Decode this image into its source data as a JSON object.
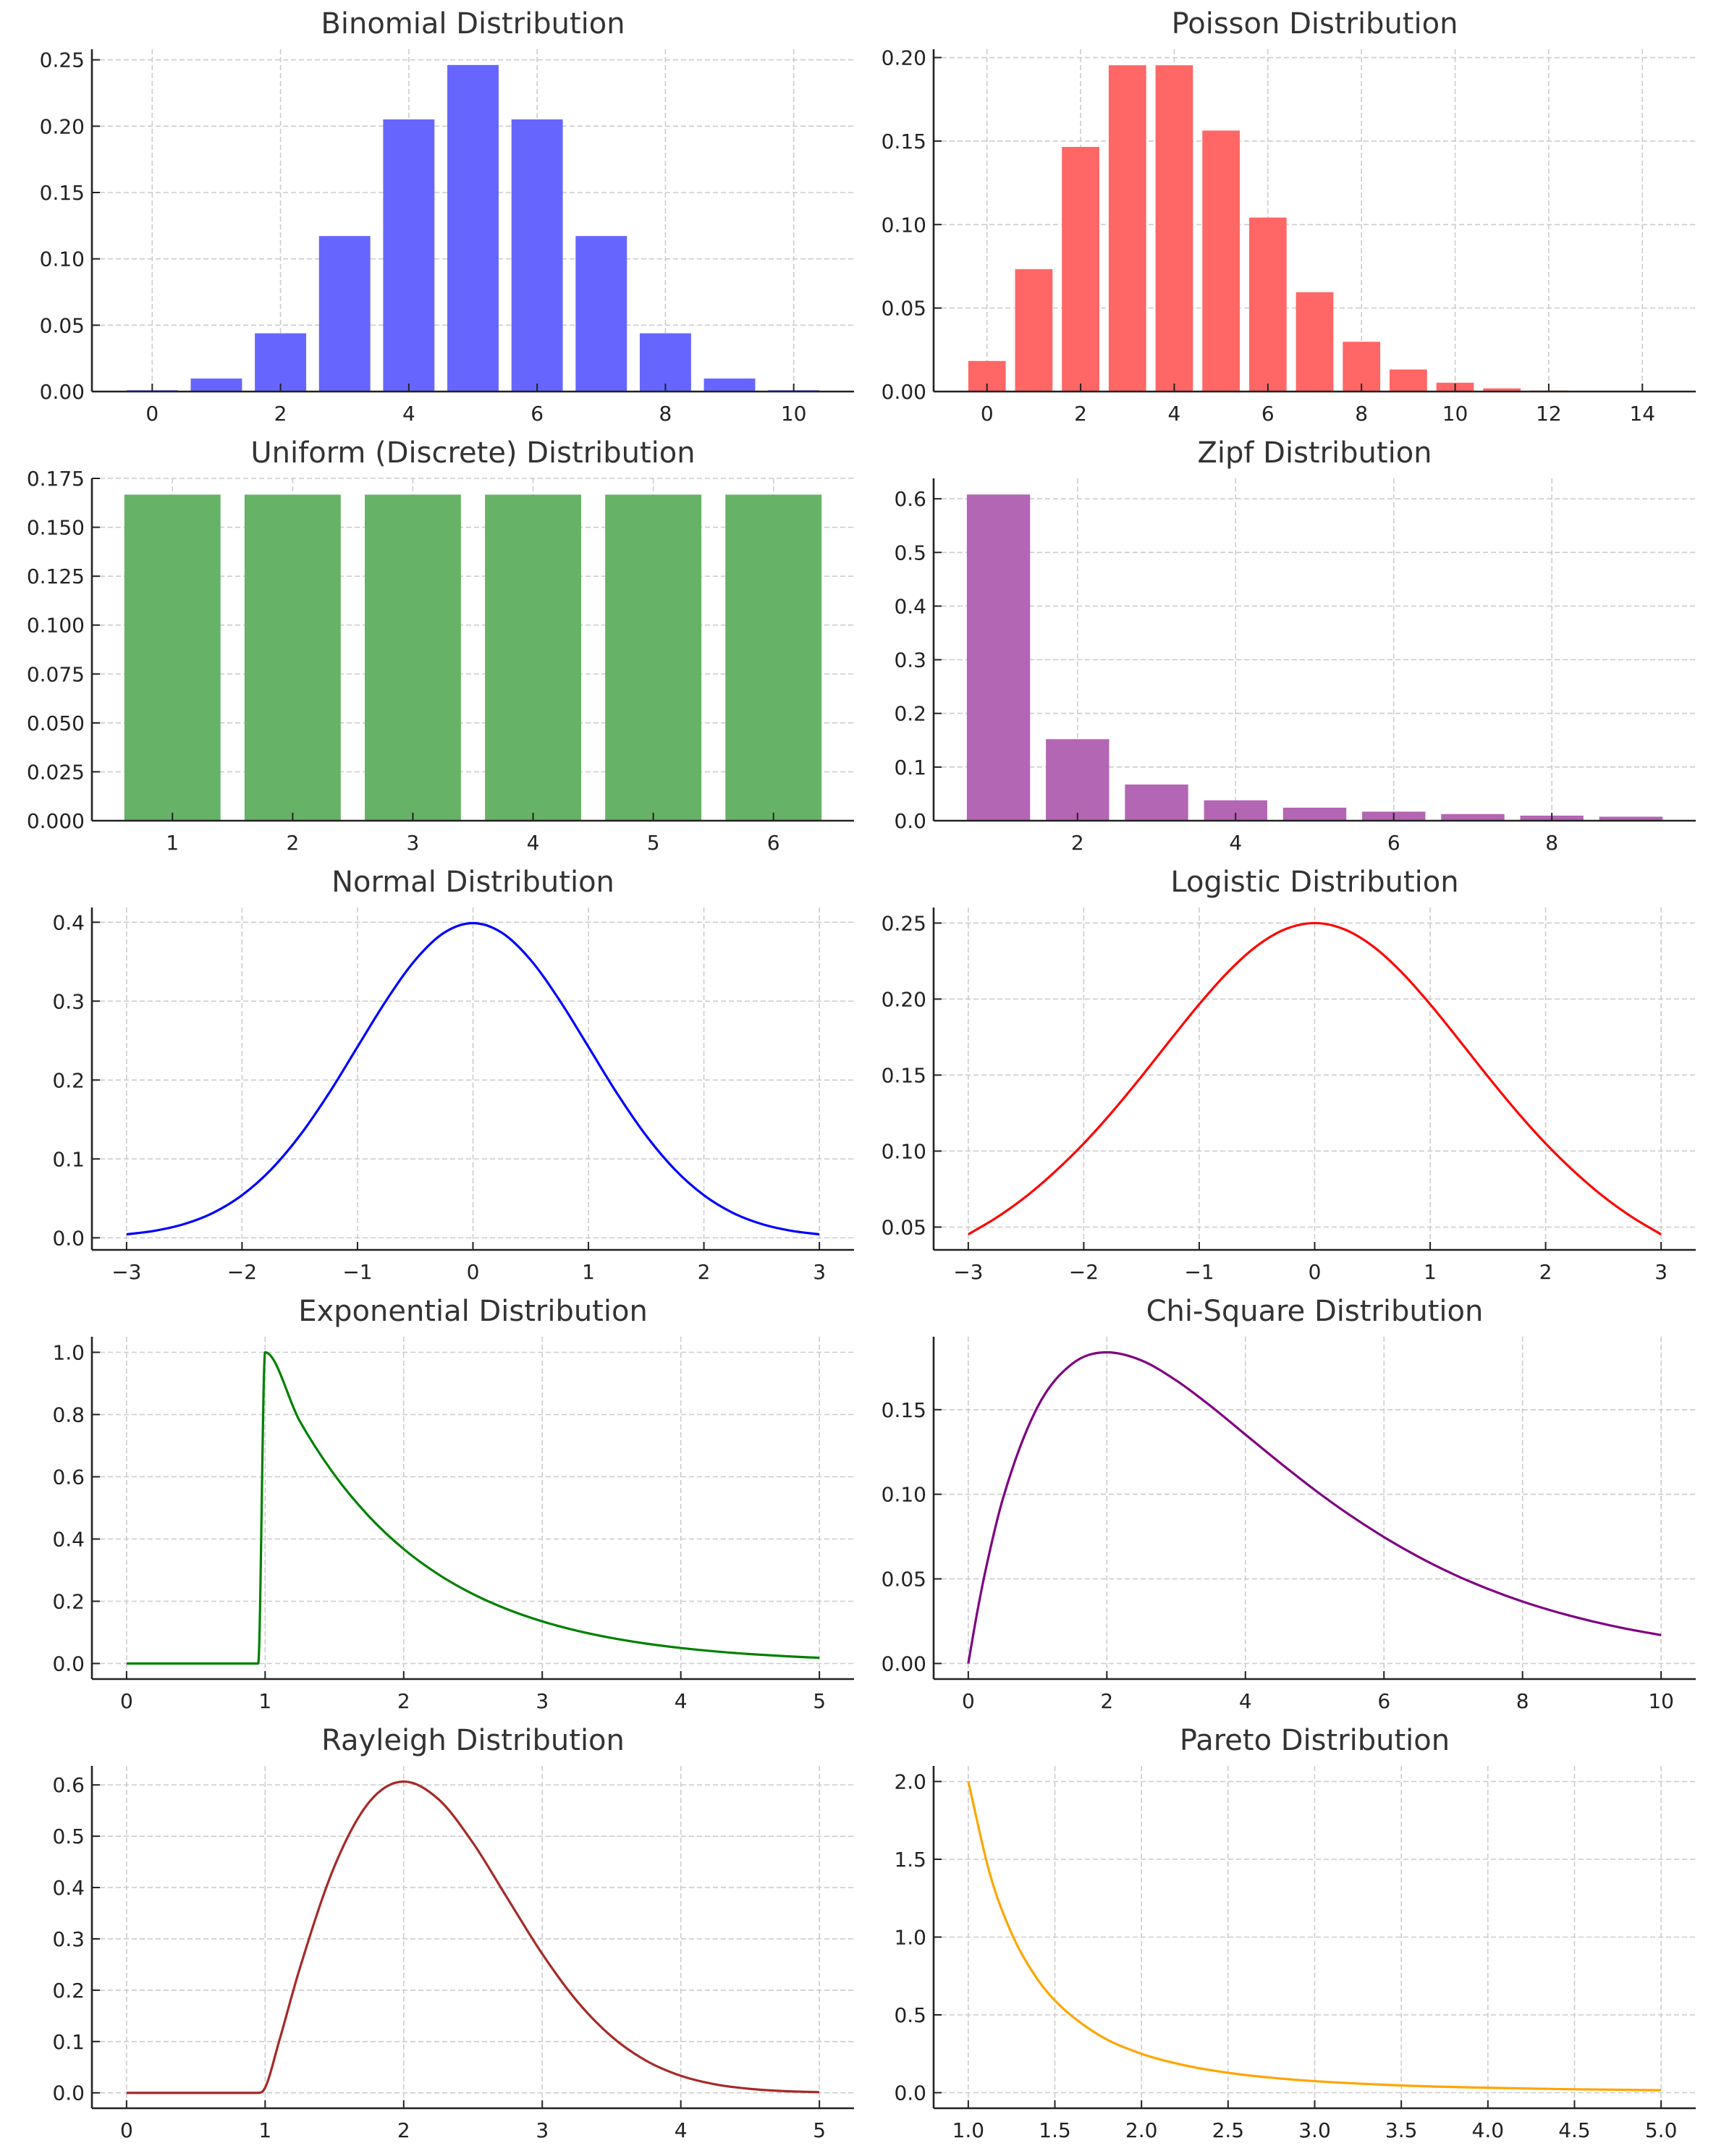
{
  "chart_data": [
    {
      "type": "bar",
      "title": "Binomial Distribution",
      "color": "#6666ff",
      "categories": [
        0,
        1,
        2,
        3,
        4,
        5,
        6,
        7,
        8,
        9,
        10
      ],
      "values": [
        0.001,
        0.0098,
        0.0439,
        0.1172,
        0.2051,
        0.2461,
        0.2051,
        0.1172,
        0.0439,
        0.0098,
        0.001
      ],
      "xlim": [
        -0.94,
        10.94
      ],
      "ylim": [
        0,
        0.258
      ],
      "xticks": [
        0,
        2,
        4,
        6,
        8,
        10
      ],
      "xtick_labels": [
        "0",
        "2",
        "4",
        "6",
        "8",
        "10"
      ],
      "yticks": [
        0,
        0.05,
        0.1,
        0.15,
        0.2,
        0.25
      ],
      "ytick_labels": [
        "0.00",
        "0.05",
        "0.10",
        "0.15",
        "0.20",
        "0.25"
      ],
      "grid": true
    },
    {
      "type": "bar",
      "title": "Poisson Distribution",
      "color": "#ff6666",
      "categories": [
        0,
        1,
        2,
        3,
        4,
        5,
        6,
        7,
        8,
        9,
        10,
        11,
        12,
        13,
        14
      ],
      "values": [
        0.0183,
        0.0733,
        0.1465,
        0.1954,
        0.1954,
        0.1563,
        0.1042,
        0.0595,
        0.0298,
        0.0132,
        0.0053,
        0.0019,
        0.0006,
        0.0002,
        0.0001
      ],
      "xlim": [
        -1.14,
        15.14
      ],
      "ylim": [
        0,
        0.205
      ],
      "xticks": [
        0,
        2,
        4,
        6,
        8,
        10,
        12,
        14
      ],
      "xtick_labels": [
        "0",
        "2",
        "4",
        "6",
        "8",
        "10",
        "12",
        "14"
      ],
      "yticks": [
        0,
        0.05,
        0.1,
        0.15,
        0.2
      ],
      "ytick_labels": [
        "0.00",
        "0.05",
        "0.10",
        "0.15",
        "0.20"
      ],
      "grid": true
    },
    {
      "type": "bar",
      "title": "Uniform (Discrete) Distribution",
      "color": "#66b266",
      "categories": [
        1,
        2,
        3,
        4,
        5,
        6
      ],
      "values": [
        0.1667,
        0.1667,
        0.1667,
        0.1667,
        0.1667,
        0.1667
      ],
      "xlim": [
        0.33,
        6.67
      ],
      "ylim": [
        0,
        0.175
      ],
      "xticks": [
        1,
        2,
        3,
        4,
        5,
        6
      ],
      "xtick_labels": [
        "1",
        "2",
        "3",
        "4",
        "5",
        "6"
      ],
      "yticks": [
        0,
        0.025,
        0.05,
        0.075,
        0.1,
        0.125,
        0.15,
        0.175
      ],
      "ytick_labels": [
        "0.000",
        "0.025",
        "0.050",
        "0.075",
        "0.100",
        "0.125",
        "0.150",
        "0.175"
      ],
      "grid": true
    },
    {
      "type": "bar",
      "title": "Zipf Distribution",
      "color": "#b366b3",
      "categories": [
        1,
        2,
        3,
        4,
        5,
        6,
        7,
        8,
        9
      ],
      "values": [
        0.608,
        0.152,
        0.0675,
        0.038,
        0.0243,
        0.0169,
        0.0124,
        0.0095,
        0.0075
      ],
      "xlim": [
        0.18,
        9.82
      ],
      "ylim": [
        0,
        0.638
      ],
      "xticks": [
        2,
        4,
        6,
        8
      ],
      "xtick_labels": [
        "2",
        "4",
        "6",
        "8"
      ],
      "yticks": [
        0,
        0.1,
        0.2,
        0.3,
        0.4,
        0.5,
        0.6
      ],
      "ytick_labels": [
        "0.0",
        "0.1",
        "0.2",
        "0.3",
        "0.4",
        "0.5",
        "0.6"
      ],
      "grid": true
    },
    {
      "type": "line",
      "title": "Normal Distribution",
      "color": "#0000ff",
      "x": [
        -3,
        -2.75,
        -2.5,
        -2.25,
        -2,
        -1.75,
        -1.5,
        -1.25,
        -1,
        -0.75,
        -0.5,
        -0.25,
        0,
        0.25,
        0.5,
        0.75,
        1,
        1.25,
        1.5,
        1.75,
        2,
        2.25,
        2.5,
        2.75,
        3
      ],
      "y": [
        0.0044,
        0.0091,
        0.0175,
        0.0317,
        0.054,
        0.0863,
        0.1295,
        0.1826,
        0.242,
        0.3011,
        0.3521,
        0.3867,
        0.3989,
        0.3867,
        0.3521,
        0.3011,
        0.242,
        0.1826,
        0.1295,
        0.0863,
        0.054,
        0.0317,
        0.0175,
        0.0091,
        0.0044
      ],
      "xlim": [
        -3.3,
        3.3
      ],
      "ylim": [
        -0.0153,
        0.4186
      ],
      "xticks": [
        -3,
        -2,
        -1,
        0,
        1,
        2,
        3
      ],
      "xtick_labels": [
        "−3",
        "−2",
        "−1",
        "0",
        "1",
        "2",
        "3"
      ],
      "yticks": [
        0,
        0.1,
        0.2,
        0.3,
        0.4
      ],
      "ytick_labels": [
        "0.0",
        "0.1",
        "0.2",
        "0.3",
        "0.4"
      ],
      "grid": true
    },
    {
      "type": "line",
      "title": "Logistic Distribution",
      "color": "#ff0000",
      "x": [
        -3,
        -2.75,
        -2.5,
        -2.25,
        -2,
        -1.75,
        -1.5,
        -1.25,
        -1,
        -0.75,
        -0.5,
        -0.25,
        0,
        0.25,
        0.5,
        0.75,
        1,
        1.25,
        1.5,
        1.75,
        2,
        2.25,
        2.5,
        2.75,
        3
      ],
      "y": [
        0.0452,
        0.0565,
        0.0701,
        0.0864,
        0.105,
        0.1261,
        0.1491,
        0.1731,
        0.1966,
        0.2179,
        0.235,
        0.2461,
        0.25,
        0.2461,
        0.235,
        0.2179,
        0.1966,
        0.1731,
        0.1491,
        0.1261,
        0.105,
        0.0864,
        0.0701,
        0.0565,
        0.0452
      ],
      "xlim": [
        -3.3,
        3.3
      ],
      "ylim": [
        0.035,
        0.2602
      ],
      "xticks": [
        -3,
        -2,
        -1,
        0,
        1,
        2,
        3
      ],
      "xtick_labels": [
        "−3",
        "−2",
        "−1",
        "0",
        "1",
        "2",
        "3"
      ],
      "yticks": [
        0.05,
        0.1,
        0.15,
        0.2,
        0.25
      ],
      "ytick_labels": [
        "0.05",
        "0.10",
        "0.15",
        "0.20",
        "0.25"
      ],
      "grid": true
    },
    {
      "type": "line",
      "title": "Exponential Distribution",
      "color": "#008000",
      "x": [
        0,
        0.95,
        1,
        1.25,
        1.5,
        1.75,
        2,
        2.25,
        2.5,
        2.75,
        3,
        3.25,
        3.5,
        3.75,
        4,
        4.25,
        4.5,
        4.75,
        5
      ],
      "y": [
        0,
        0,
        1,
        0.7788,
        0.6065,
        0.4724,
        0.3679,
        0.2865,
        0.2231,
        0.1738,
        0.1353,
        0.1054,
        0.0821,
        0.0639,
        0.0498,
        0.0388,
        0.0302,
        0.0235,
        0.0183
      ],
      "xlim": [
        -0.25,
        5.25
      ],
      "ylim": [
        -0.05,
        1.05
      ],
      "xticks": [
        0,
        1,
        2,
        3,
        4,
        5
      ],
      "xtick_labels": [
        "0",
        "1",
        "2",
        "3",
        "4",
        "5"
      ],
      "yticks": [
        0,
        0.2,
        0.4,
        0.6,
        0.8,
        1
      ],
      "ytick_labels": [
        "0.0",
        "0.2",
        "0.4",
        "0.6",
        "0.8",
        "1.0"
      ],
      "grid": true
    },
    {
      "type": "line",
      "title": "Chi-Square Distribution",
      "color": "#800080",
      "x": [
        0,
        0.125,
        0.25,
        0.5,
        1,
        1.5,
        2,
        2.5,
        3,
        3.5,
        4,
        4.5,
        5,
        5.5,
        6,
        6.5,
        7,
        7.5,
        8,
        8.5,
        9,
        9.5,
        10
      ],
      "y": [
        0,
        0.0294,
        0.0552,
        0.0974,
        0.1516,
        0.1771,
        0.1839,
        0.1791,
        0.1673,
        0.1521,
        0.1353,
        0.1186,
        0.1026,
        0.0879,
        0.0747,
        0.063,
        0.0528,
        0.0441,
        0.0366,
        0.0303,
        0.025,
        0.0205,
        0.0168
      ],
      "xlim": [
        -0.5,
        10.5
      ],
      "ylim": [
        -0.0092,
        0.1931
      ],
      "xticks": [
        0,
        2,
        4,
        6,
        8,
        10
      ],
      "xtick_labels": [
        "0",
        "2",
        "4",
        "6",
        "8",
        "10"
      ],
      "yticks": [
        0,
        0.05,
        0.1,
        0.15
      ],
      "ytick_labels": [
        "0.00",
        "0.05",
        "0.10",
        "0.15"
      ],
      "grid": true
    },
    {
      "type": "line",
      "title": "Rayleigh Distribution",
      "color": "#a52a2a",
      "x": [
        0,
        0.95,
        1,
        1.1,
        1.25,
        1.5,
        1.75,
        2,
        2.25,
        2.5,
        2.75,
        3,
        3.25,
        3.5,
        3.75,
        4,
        4.25,
        4.5,
        4.75,
        5
      ],
      "y": [
        0,
        0,
        0.01,
        0.0995,
        0.2423,
        0.4412,
        0.5661,
        0.6065,
        0.5723,
        0.487,
        0.3785,
        0.2707,
        0.179,
        0.1098,
        0.0626,
        0.0333,
        0.0165,
        0.0077,
        0.0033,
        0.0013
      ],
      "xlim": [
        -0.25,
        5.25
      ],
      "ylim": [
        -0.03,
        0.637
      ],
      "xticks": [
        0,
        1,
        2,
        3,
        4,
        5
      ],
      "xtick_labels": [
        "0",
        "1",
        "2",
        "3",
        "4",
        "5"
      ],
      "yticks": [
        0,
        0.1,
        0.2,
        0.3,
        0.4,
        0.5,
        0.6
      ],
      "ytick_labels": [
        "0.0",
        "0.1",
        "0.2",
        "0.3",
        "0.4",
        "0.5",
        "0.6"
      ],
      "grid": true
    },
    {
      "type": "line",
      "title": "Pareto Distribution",
      "color": "#ffa500",
      "x": [
        1,
        1.125,
        1.25,
        1.375,
        1.5,
        1.75,
        2,
        2.25,
        2.5,
        2.75,
        3,
        3.5,
        4,
        4.5,
        5
      ],
      "y": [
        2,
        1.4047,
        1.024,
        0.7693,
        0.5926,
        0.3732,
        0.25,
        0.1756,
        0.128,
        0.0962,
        0.0741,
        0.0466,
        0.0313,
        0.0219,
        0.016
      ],
      "xlim": [
        0.8,
        5.2
      ],
      "ylim": [
        -0.1,
        2.1
      ],
      "xticks": [
        1,
        1.5,
        2,
        2.5,
        3,
        3.5,
        4,
        4.5,
        5
      ],
      "xtick_labels": [
        "1.0",
        "1.5",
        "2.0",
        "2.5",
        "3.0",
        "3.5",
        "4.0",
        "4.5",
        "5.0"
      ],
      "yticks": [
        0,
        0.5,
        1,
        1.5,
        2
      ],
      "ytick_labels": [
        "0.0",
        "0.5",
        "1.0",
        "1.5",
        "2.0"
      ],
      "grid": true
    }
  ]
}
